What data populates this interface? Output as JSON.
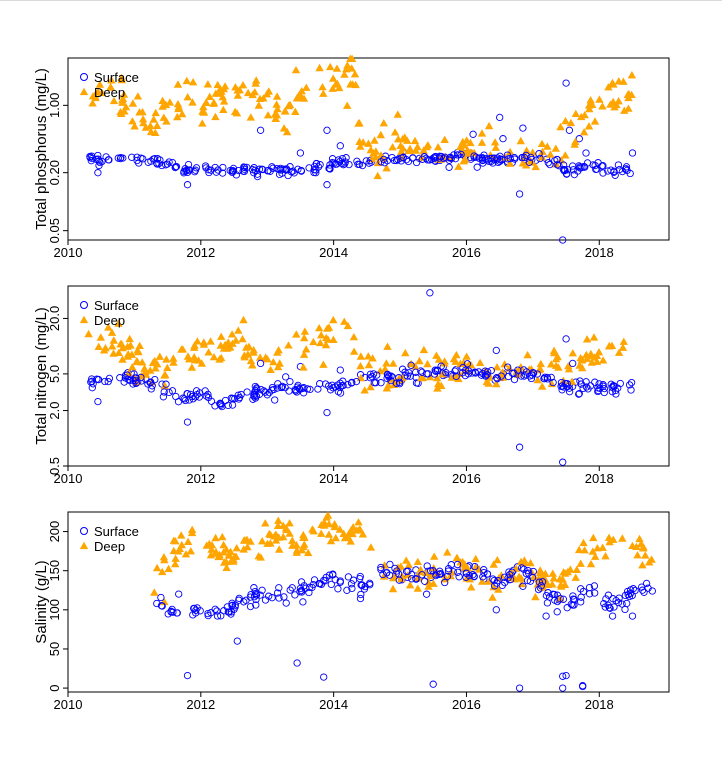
{
  "colors": {
    "surface": "#0000ff",
    "deep": "#ffa500",
    "axis": "#000000"
  },
  "legend": {
    "surface": "Surface",
    "deep": "Deep"
  },
  "chart_data": [
    {
      "type": "scatter",
      "title": "",
      "xlabel": "",
      "ylabel": "Total phosphorus (mg/L)",
      "yscale": "log",
      "xlim": [
        2010,
        2019.05
      ],
      "ylim": [
        0.04,
        3.1
      ],
      "xticks": [
        2010,
        2012,
        2014,
        2016,
        2018
      ],
      "xtick_labels": [
        "2010",
        "2012",
        "2014",
        "2016",
        "2018"
      ],
      "yticks": [
        0.05,
        0.2,
        1.0
      ],
      "ytick_labels": [
        "0.05",
        "0.20",
        "1.00"
      ],
      "legend_position": "top-left",
      "series": [
        {
          "name": "Surface",
          "marker": "open-circle",
          "anchors": [
            [
              2010.3,
              0.28
            ],
            [
              2011.3,
              0.27
            ],
            [
              2011.7,
              0.22
            ],
            [
              2012.1,
              0.22
            ],
            [
              2012.5,
              0.21
            ],
            [
              2013.0,
              0.22
            ],
            [
              2013.5,
              0.21
            ],
            [
              2014.0,
              0.25
            ],
            [
              2014.5,
              0.26
            ],
            [
              2015.0,
              0.28
            ],
            [
              2015.5,
              0.28
            ],
            [
              2016.0,
              0.3
            ],
            [
              2016.4,
              0.27
            ],
            [
              2016.8,
              0.28
            ],
            [
              2017.3,
              0.27
            ],
            [
              2017.5,
              0.21
            ],
            [
              2017.8,
              0.23
            ],
            [
              2018.2,
              0.21
            ],
            [
              2018.5,
              0.21
            ]
          ],
          "outliers": [
            [
              2010.45,
              0.2
            ],
            [
              2011.8,
              0.15
            ],
            [
              2012.9,
              0.55
            ],
            [
              2013.5,
              0.32
            ],
            [
              2013.9,
              0.15
            ],
            [
              2013.9,
              0.55
            ],
            [
              2014.1,
              0.38
            ],
            [
              2016.1,
              0.5
            ],
            [
              2016.5,
              0.75
            ],
            [
              2016.55,
              0.45
            ],
            [
              2016.8,
              0.12
            ],
            [
              2016.85,
              0.58
            ],
            [
              2017.45,
              0.04
            ],
            [
              2017.5,
              1.7
            ],
            [
              2017.55,
              0.55
            ],
            [
              2017.7,
              0.45
            ],
            [
              2017.8,
              0.32
            ],
            [
              2018.5,
              0.32
            ]
          ],
          "stats": {
            "n": 300,
            "jitter_sd": 0.025,
            "outlier_count": 18
          }
        },
        {
          "name": "Deep",
          "marker": "filled-triangle",
          "anchors": [
            [
              2010.3,
              1.2
            ],
            [
              2010.7,
              1.45
            ],
            [
              2011.0,
              0.8
            ],
            [
              2011.3,
              0.55
            ],
            [
              2011.5,
              1.0
            ],
            [
              2011.8,
              1.2
            ],
            [
              2012.0,
              1.0
            ],
            [
              2012.4,
              1.4
            ],
            [
              2012.8,
              1.2
            ],
            [
              2012.9,
              0.95
            ],
            [
              2013.1,
              1.1
            ],
            [
              2013.3,
              0.95
            ],
            [
              2013.6,
              1.4
            ],
            [
              2013.9,
              1.7
            ],
            [
              2014.1,
              1.8
            ],
            [
              2014.3,
              2.1
            ],
            [
              2014.4,
              0.35
            ],
            [
              2014.7,
              0.35
            ],
            [
              2015.0,
              0.4
            ],
            [
              2015.5,
              0.35
            ],
            [
              2016.0,
              0.32
            ],
            [
              2016.5,
              0.32
            ],
            [
              2016.8,
              0.28
            ],
            [
              2017.1,
              0.27
            ],
            [
              2017.4,
              0.4
            ],
            [
              2017.6,
              0.55
            ],
            [
              2017.8,
              0.8
            ],
            [
              2018.0,
              1.0
            ],
            [
              2018.3,
              1.4
            ],
            [
              2018.5,
              1.2
            ]
          ],
          "outliers": [],
          "stats": {
            "n": 260,
            "jitter_sd": 0.11,
            "outlier_count": 0
          }
        }
      ]
    },
    {
      "type": "scatter",
      "title": "",
      "xlabel": "",
      "ylabel": "Total nitrogen (mg/L)",
      "yscale": "log",
      "xlim": [
        2010,
        2019.05
      ],
      "ylim": [
        0.5,
        45
      ],
      "xticks": [
        2010,
        2012,
        2014,
        2016,
        2018
      ],
      "xtick_labels": [
        "2010",
        "2012",
        "2014",
        "2016",
        "2018"
      ],
      "yticks": [
        0.5,
        2.0,
        5.0,
        20.0
      ],
      "ytick_labels": [
        "0.5",
        "2.0",
        "5.0",
        "20.0"
      ],
      "legend_position": "top-left",
      "series": [
        {
          "name": "Surface",
          "marker": "open-circle",
          "anchors": [
            [
              2010.3,
              4.0
            ],
            [
              2010.8,
              4.5
            ],
            [
              2011.3,
              4.0
            ],
            [
              2011.5,
              3.2
            ],
            [
              2011.7,
              2.8
            ],
            [
              2012.0,
              3.2
            ],
            [
              2012.2,
              2.2
            ],
            [
              2012.6,
              2.8
            ],
            [
              2012.9,
              3.2
            ],
            [
              2013.2,
              3.7
            ],
            [
              2013.6,
              3.4
            ],
            [
              2014.0,
              3.6
            ],
            [
              2014.5,
              4.5
            ],
            [
              2015.0,
              4.7
            ],
            [
              2015.5,
              5.0
            ],
            [
              2016.0,
              5.5
            ],
            [
              2016.4,
              4.8
            ],
            [
              2016.8,
              5.2
            ],
            [
              2017.2,
              4.5
            ],
            [
              2017.5,
              3.5
            ],
            [
              2017.8,
              3.8
            ],
            [
              2018.2,
              3.5
            ],
            [
              2018.5,
              4.0
            ]
          ],
          "outliers": [
            [
              2010.45,
              2.5
            ],
            [
              2011.8,
              1.5
            ],
            [
              2012.9,
              6.5
            ],
            [
              2013.5,
              6.0
            ],
            [
              2013.9,
              1.9
            ],
            [
              2014.1,
              5.5
            ],
            [
              2015.45,
              38.0
            ],
            [
              2016.45,
              9.0
            ],
            [
              2016.8,
              0.8
            ],
            [
              2017.45,
              0.55
            ],
            [
              2017.5,
              12.0
            ],
            [
              2017.6,
              6.5
            ]
          ],
          "stats": {
            "n": 300,
            "jitter_sd": 0.035,
            "outlier_count": 12
          }
        },
        {
          "name": "Deep",
          "marker": "filled-triangle",
          "anchors": [
            [
              2010.3,
              9.0
            ],
            [
              2010.7,
              11.0
            ],
            [
              2011.0,
              6.0
            ],
            [
              2011.3,
              5.0
            ],
            [
              2011.5,
              8.0
            ],
            [
              2011.8,
              9.0
            ],
            [
              2012.0,
              8.0
            ],
            [
              2012.4,
              10.0
            ],
            [
              2012.8,
              9.0
            ],
            [
              2012.9,
              8.0
            ],
            [
              2013.1,
              8.0
            ],
            [
              2013.3,
              8.0
            ],
            [
              2013.6,
              10.0
            ],
            [
              2013.9,
              12.0
            ],
            [
              2014.1,
              12.0
            ],
            [
              2014.3,
              14.0
            ],
            [
              2014.4,
              5.5
            ],
            [
              2014.7,
              5.0
            ],
            [
              2015.0,
              5.2
            ],
            [
              2015.5,
              5.8
            ],
            [
              2016.0,
              5.5
            ],
            [
              2016.5,
              5.2
            ],
            [
              2016.8,
              5.5
            ],
            [
              2017.1,
              5.0
            ],
            [
              2017.4,
              5.0
            ],
            [
              2017.6,
              6.0
            ],
            [
              2017.8,
              7.5
            ],
            [
              2018.0,
              8.5
            ],
            [
              2018.3,
              10.5
            ],
            [
              2018.5,
              11.0
            ]
          ],
          "outliers": [],
          "stats": {
            "n": 240,
            "jitter_sd": 0.1,
            "outlier_count": 0
          }
        }
      ]
    },
    {
      "type": "scatter",
      "title": "",
      "xlabel": "",
      "ylabel": "Salinity (g/L)",
      "yscale": "linear",
      "xlim": [
        2010,
        2019.05
      ],
      "ylim": [
        -5,
        225
      ],
      "xticks": [
        2010,
        2012,
        2014,
        2016,
        2018
      ],
      "xtick_labels": [
        "2010",
        "2012",
        "2014",
        "2016",
        "2018"
      ],
      "yticks": [
        0,
        50,
        100,
        150,
        200
      ],
      "ytick_labels": [
        "0",
        "50",
        "100",
        "150",
        "200"
      ],
      "legend_position": "top-left",
      "series": [
        {
          "name": "Surface",
          "marker": "open-circle",
          "anchors": [
            [
              2011.3,
              118
            ],
            [
              2011.6,
              100
            ],
            [
              2011.9,
              98
            ],
            [
              2012.2,
              95
            ],
            [
              2012.6,
              105
            ],
            [
              2012.8,
              118
            ],
            [
              2013.1,
              120
            ],
            [
              2013.3,
              118
            ],
            [
              2013.6,
              128
            ],
            [
              2013.9,
              138
            ],
            [
              2014.2,
              136
            ],
            [
              2014.5,
              132
            ],
            [
              2014.7,
              145
            ],
            [
              2015.0,
              145
            ],
            [
              2015.4,
              142
            ],
            [
              2015.7,
              148
            ],
            [
              2015.9,
              152
            ],
            [
              2016.2,
              145
            ],
            [
              2016.5,
              138
            ],
            [
              2016.8,
              150
            ],
            [
              2017.0,
              140
            ],
            [
              2017.3,
              115
            ],
            [
              2017.5,
              105
            ],
            [
              2017.7,
              115
            ],
            [
              2017.9,
              122
            ],
            [
              2018.2,
              110
            ],
            [
              2018.5,
              120
            ],
            [
              2018.7,
              132
            ],
            [
              2018.8,
              135
            ]
          ],
          "outliers": [
            [
              2011.8,
              16
            ],
            [
              2012.55,
              60
            ],
            [
              2013.45,
              32
            ],
            [
              2013.85,
              14
            ],
            [
              2014.2,
              125
            ],
            [
              2015.4,
              120
            ],
            [
              2015.5,
              5
            ],
            [
              2016.45,
              100
            ],
            [
              2016.8,
              0
            ],
            [
              2016.85,
              130
            ],
            [
              2017.2,
              92
            ],
            [
              2017.45,
              0
            ],
            [
              2017.45,
              15
            ],
            [
              2017.5,
              16
            ],
            [
              2017.75,
              2
            ],
            [
              2017.75,
              3
            ],
            [
              2018.2,
              92
            ],
            [
              2018.5,
              92
            ]
          ],
          "stats": {
            "n": 260,
            "jitter_sd": 6,
            "outlier_count": 18
          }
        },
        {
          "name": "Deep",
          "marker": "filled-triangle",
          "anchors": [
            [
              2011.3,
              135
            ],
            [
              2011.5,
              160
            ],
            [
              2011.7,
              185
            ],
            [
              2012.0,
              195
            ],
            [
              2012.3,
              175
            ],
            [
              2012.5,
              168
            ],
            [
              2012.8,
              185
            ],
            [
              2013.0,
              195
            ],
            [
              2013.3,
              200
            ],
            [
              2013.5,
              185
            ],
            [
              2013.8,
              195
            ],
            [
              2014.0,
              205
            ],
            [
              2014.3,
              200
            ],
            [
              2014.5,
              195
            ],
            [
              2014.7,
              145
            ],
            [
              2015.0,
              148
            ],
            [
              2015.5,
              145
            ],
            [
              2015.8,
              150
            ],
            [
              2016.0,
              152
            ],
            [
              2016.3,
              145
            ],
            [
              2016.6,
              140
            ],
            [
              2016.8,
              152
            ],
            [
              2017.0,
              145
            ],
            [
              2017.3,
              130
            ],
            [
              2017.5,
              140
            ],
            [
              2017.7,
              160
            ],
            [
              2017.9,
              178
            ],
            [
              2018.2,
              185
            ],
            [
              2018.5,
              180
            ],
            [
              2018.8,
              172
            ]
          ],
          "outliers": [
            [
              2011.3,
              122
            ],
            [
              2011.45,
              110
            ]
          ],
          "stats": {
            "n": 240,
            "jitter_sd": 10,
            "outlier_count": 2
          }
        }
      ]
    }
  ]
}
